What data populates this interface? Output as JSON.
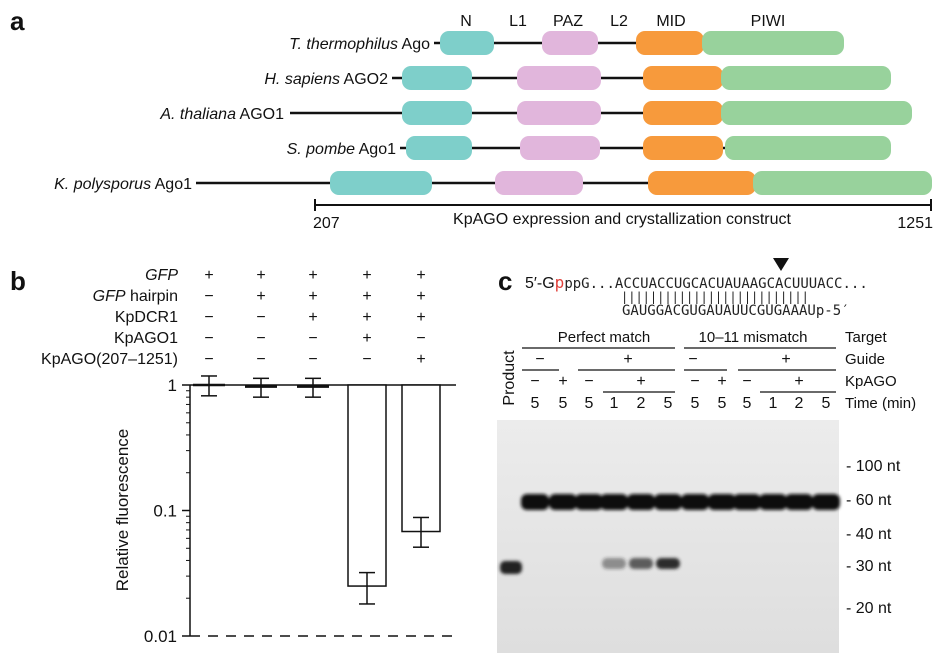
{
  "panel_a": {
    "label": "a",
    "domains": [
      {
        "name": "N",
        "color": "#7ecfca"
      },
      {
        "name": "L1",
        "color": "#e1b6dc"
      },
      {
        "name": "PAZ",
        "color": "#e1b6dc"
      },
      {
        "name": "L2",
        "color": "#e1b6dc"
      },
      {
        "name": "MID",
        "color": "#f79a3c"
      },
      {
        "name": "PIWI",
        "color": "#98d29c"
      }
    ],
    "proteins": [
      {
        "species": "T. thermophilus",
        "protein": "Ago"
      },
      {
        "species": "H. sapiens",
        "protein": "AGO2"
      },
      {
        "species": "A. thaliana",
        "protein": "AGO1"
      },
      {
        "species": "S. pombe",
        "protein": "Ago1"
      },
      {
        "species": "K. polysporus",
        "protein": "Ago1"
      }
    ],
    "construct": {
      "start": "207",
      "end": "1251",
      "label": "KpAGO expression and crystallization construct"
    }
  },
  "panel_b": {
    "label": "b",
    "conditions": [
      {
        "name": "GFP",
        "italic": true,
        "suffix": "",
        "signs": [
          "+",
          "+",
          "+",
          "+",
          "+"
        ]
      },
      {
        "name": "GFP",
        "italic": true,
        "suffix": " hairpin",
        "signs": [
          "−",
          "+",
          "+",
          "+",
          "+"
        ]
      },
      {
        "name": "KpDCR1",
        "italic": false,
        "suffix": "",
        "signs": [
          "−",
          "−",
          "+",
          "+",
          "+"
        ]
      },
      {
        "name": "KpAGO1",
        "italic": false,
        "suffix": "",
        "signs": [
          "−",
          "−",
          "−",
          "+",
          "−"
        ]
      },
      {
        "name": "KpAGO(207–1251)",
        "italic": false,
        "suffix": "",
        "signs": [
          "−",
          "−",
          "−",
          "−",
          "+"
        ]
      }
    ],
    "chart_data": {
      "type": "bar",
      "ylabel": "Relative fluorescence",
      "yscale": "log",
      "ylim": [
        0.01,
        1
      ],
      "yticks": [
        "1",
        "0.1",
        "0.01"
      ],
      "values": [
        1.0,
        0.97,
        0.97,
        0.025,
        0.068
      ],
      "error_low": [
        0.82,
        0.8,
        0.8,
        0.018,
        0.051
      ],
      "error_high": [
        1.18,
        1.13,
        1.13,
        0.032,
        0.088
      ]
    }
  },
  "panel_c": {
    "label": "c",
    "seq_top_prefix": "5′-G",
    "seq_top_red": "p",
    "seq_top_main": "ppG...ACCUACCUGCACUAUAAGCACUUUACC...",
    "seq_bottom": "GAUGGACGUGAUAUUCGUGAAAUp-5′",
    "pairs": "||||||||||||||||||||||||||",
    "groups": [
      "Perfect match",
      "10–11 mismatch"
    ],
    "row_labels": {
      "target": "Target",
      "guide": "Guide",
      "kpago": "KpAGO",
      "time": "Time (min)"
    },
    "product_label": "Product",
    "guide_signs": [
      "−",
      "+",
      "−",
      "+"
    ],
    "kpago_signs": [
      "−",
      "+",
      "−",
      "+",
      "−",
      "+",
      "−",
      "+"
    ],
    "times": [
      "5",
      "5",
      "5",
      "1",
      "2",
      "5",
      "5",
      "5",
      "5",
      "1",
      "2",
      "5"
    ],
    "markers": [
      "- 100 nt",
      "- 60 nt",
      "- 40 nt",
      "- 30 nt",
      "- 20 nt"
    ]
  }
}
